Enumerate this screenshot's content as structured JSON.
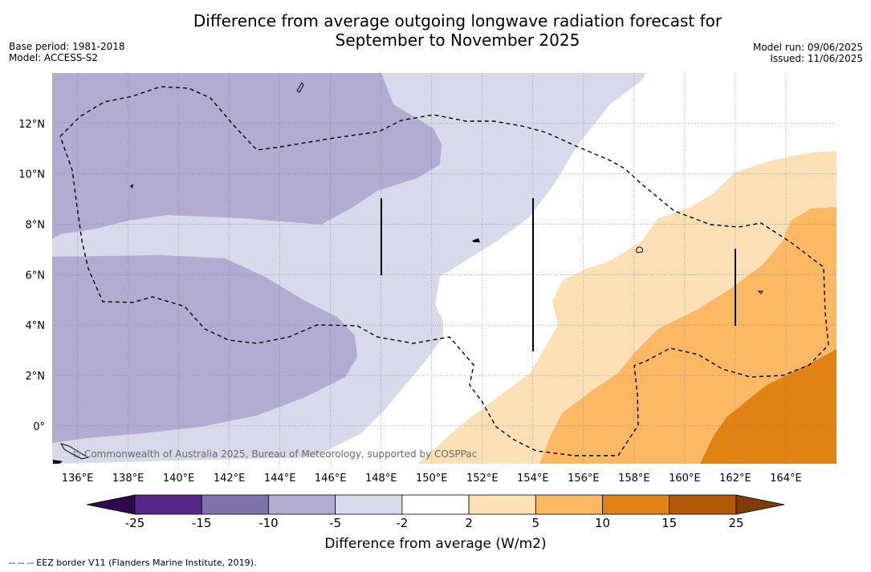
{
  "title_line1": "Difference from average outgoing longwave radiation forecast for",
  "title_line2": "September to November 2025",
  "base_period": "Base period: 1981-2018",
  "model": "Model: ACCESS-S2",
  "model_run": "Model run: 09/06/2025",
  "issued": "Issued: 11/06/2025",
  "copyright": "© Commonwealth of Australia 2025, Bureau of Meteorology, supported by COSPPac",
  "map": {
    "longitude_labels": [
      "136°E",
      "138°E",
      "140°E",
      "142°E",
      "144°E",
      "146°E",
      "148°E",
      "150°E",
      "152°E",
      "154°E",
      "156°E",
      "158°E",
      "160°E",
      "162°E",
      "164°E"
    ],
    "latitude_labels": [
      "12°N",
      "10°N",
      "8°N",
      "6°N",
      "4°N",
      "2°N",
      "0°"
    ],
    "lon_range": [
      135,
      166
    ],
    "lat_range": [
      -1.5,
      14
    ]
  },
  "legend": {
    "title": "Difference from average (W/m2)",
    "ticks": [
      "-25",
      "-15",
      "-10",
      "-5",
      "-2",
      "2",
      "5",
      "10",
      "15",
      "25"
    ],
    "colors": {
      "below_-25": "#2d0a4e",
      "-25_-15": "#542788",
      "-15_-10": "#8073ac",
      "-10_-5": "#b2abd2",
      "-5_-2": "#d8daeb",
      "-2_2": "#ffffff",
      "2_5": "#fee0b6",
      "5_10": "#fdb863",
      "10_15": "#e08214",
      "15_25": "#b35806",
      "above_25": "#7f3b08"
    }
  },
  "footnote": "--  --  -- EEZ border V11 (Flanders Marine Institute, 2019)."
}
